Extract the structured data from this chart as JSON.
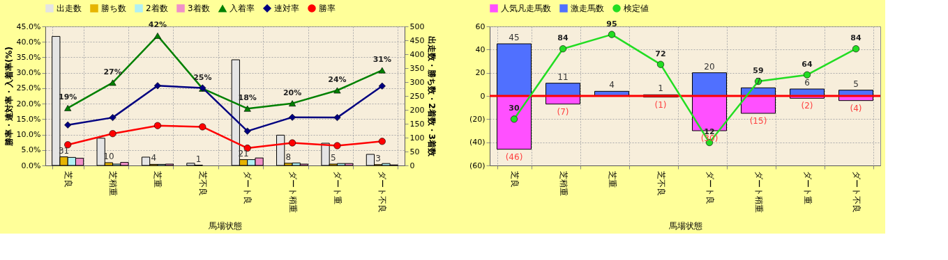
{
  "chart_data": [
    {
      "type": "bar",
      "categories": [
        "芝良",
        "芝稍重",
        "芝重",
        "芝不良",
        "ダート良",
        "ダート稍重",
        "ダート重",
        "ダート不良"
      ],
      "xlabel": "馬場状態",
      "ylabel": "勝率・連対率・入着率(%)",
      "y2label": "出走数・勝ち数・2着数・3着数",
      "ylim": [
        0,
        45
      ],
      "yticks": [
        {
          "value": 0,
          "label": "0.0%"
        },
        {
          "value": 5,
          "label": "5.0%"
        },
        {
          "value": 10,
          "label": "10.0%"
        },
        {
          "value": 15,
          "label": "15.0%"
        },
        {
          "value": 20,
          "label": "20.0%"
        },
        {
          "value": 25,
          "label": "25.0%"
        },
        {
          "value": 30,
          "label": "30.0%"
        },
        {
          "value": 35,
          "label": "35.0%"
        },
        {
          "value": 40,
          "label": "40.0%"
        },
        {
          "value": 45,
          "label": "45.0%"
        }
      ],
      "y2lim": [
        0,
        500
      ],
      "y2ticks": [
        0,
        50,
        100,
        150,
        200,
        250,
        300,
        350,
        400,
        450,
        500
      ],
      "grid": true,
      "legend": "top",
      "series": [
        {
          "name": "出走数",
          "axis": "y2",
          "color": "#e4e4e4",
          "values": [
            464,
            98,
            30,
            8,
            380,
            109,
            80,
            40
          ]
        },
        {
          "name": "勝ち数",
          "axis": "y2",
          "color": "#e6b400",
          "values": [
            31,
            10,
            4,
            1,
            21,
            8,
            5,
            3
          ],
          "value_labels": [
            "31",
            "10",
            "4",
            "1",
            "21",
            "8",
            "5",
            "3"
          ]
        },
        {
          "name": "2着数",
          "axis": "y2",
          "color": "#b0f0f4",
          "values": [
            29,
            5,
            4,
            null,
            21,
            9,
            7,
            7
          ]
        },
        {
          "name": "3着数",
          "axis": "y2",
          "color": "#f090c8",
          "values": [
            26,
            11,
            5,
            null,
            27,
            5,
            7,
            2
          ]
        },
        {
          "name": "入着率",
          "type": "line",
          "color": "#008000",
          "marker": "triangle",
          "values": [
            18.6,
            26.8,
            42.0,
            24.9,
            18.4,
            20.1,
            24.3,
            30.8
          ],
          "value_labels": [
            "19%",
            "27%",
            "42%",
            "25%",
            "18%",
            "20%",
            "24%",
            "31%"
          ]
        },
        {
          "name": "連対率",
          "type": "line",
          "color": "#000080",
          "marker": "diamond",
          "values": [
            13.1,
            15.5,
            25.8,
            25.1,
            11.1,
            15.6,
            15.5,
            25.7
          ]
        },
        {
          "name": "勝率",
          "type": "line",
          "color": "#ff0000",
          "marker": "circle",
          "values": [
            6.7,
            10.3,
            12.9,
            12.5,
            5.6,
            7.3,
            6.4,
            7.8
          ]
        }
      ]
    },
    {
      "type": "bar",
      "stacked": true,
      "categories": [
        "芝良",
        "芝稍重",
        "芝重",
        "芝不良",
        "ダート良",
        "ダート稍重",
        "ダート重",
        "ダート不良"
      ],
      "xlabel": "馬場状態",
      "ylim": [
        -60,
        60
      ],
      "yticks": [
        {
          "value": -60,
          "label": "(60)"
        },
        {
          "value": -40,
          "label": "(40)"
        },
        {
          "value": -20,
          "label": "(20)"
        },
        0,
        20,
        40,
        60
      ],
      "y2lim": [
        -5.6,
        101.2
      ],
      "tick_labels": "xy",
      "grid": true,
      "legend": "top",
      "ref_lines": [
        {
          "axis": "y",
          "value": 0,
          "color": "#ff0000"
        }
      ],
      "series": [
        {
          "name": "人気凡走馬数",
          "color": "#ff50ff",
          "values": [
            -46,
            -7,
            null,
            -1,
            -30,
            -15,
            -2,
            -4
          ],
          "value_labels": [
            "(46)",
            "(7)",
            null,
            "(1)",
            "(30)",
            "(15)",
            "(2)",
            "(4)"
          ]
        },
        {
          "name": "激走馬数",
          "color": "#5070ff",
          "values": [
            45,
            11,
            4,
            1,
            20,
            7,
            6,
            5
          ],
          "value_labels": [
            "45",
            "11",
            "4",
            "1",
            "20",
            "7",
            "6",
            "5"
          ]
        },
        {
          "name": "検定値",
          "type": "line",
          "axis": "y2",
          "color": "#22dd22",
          "marker": "circle",
          "values": [
            30,
            84,
            95,
            72,
            12,
            59,
            64,
            84
          ],
          "value_labels": [
            "30",
            "84",
            "95",
            "72",
            "12",
            "59",
            "64",
            "84"
          ]
        }
      ]
    }
  ]
}
